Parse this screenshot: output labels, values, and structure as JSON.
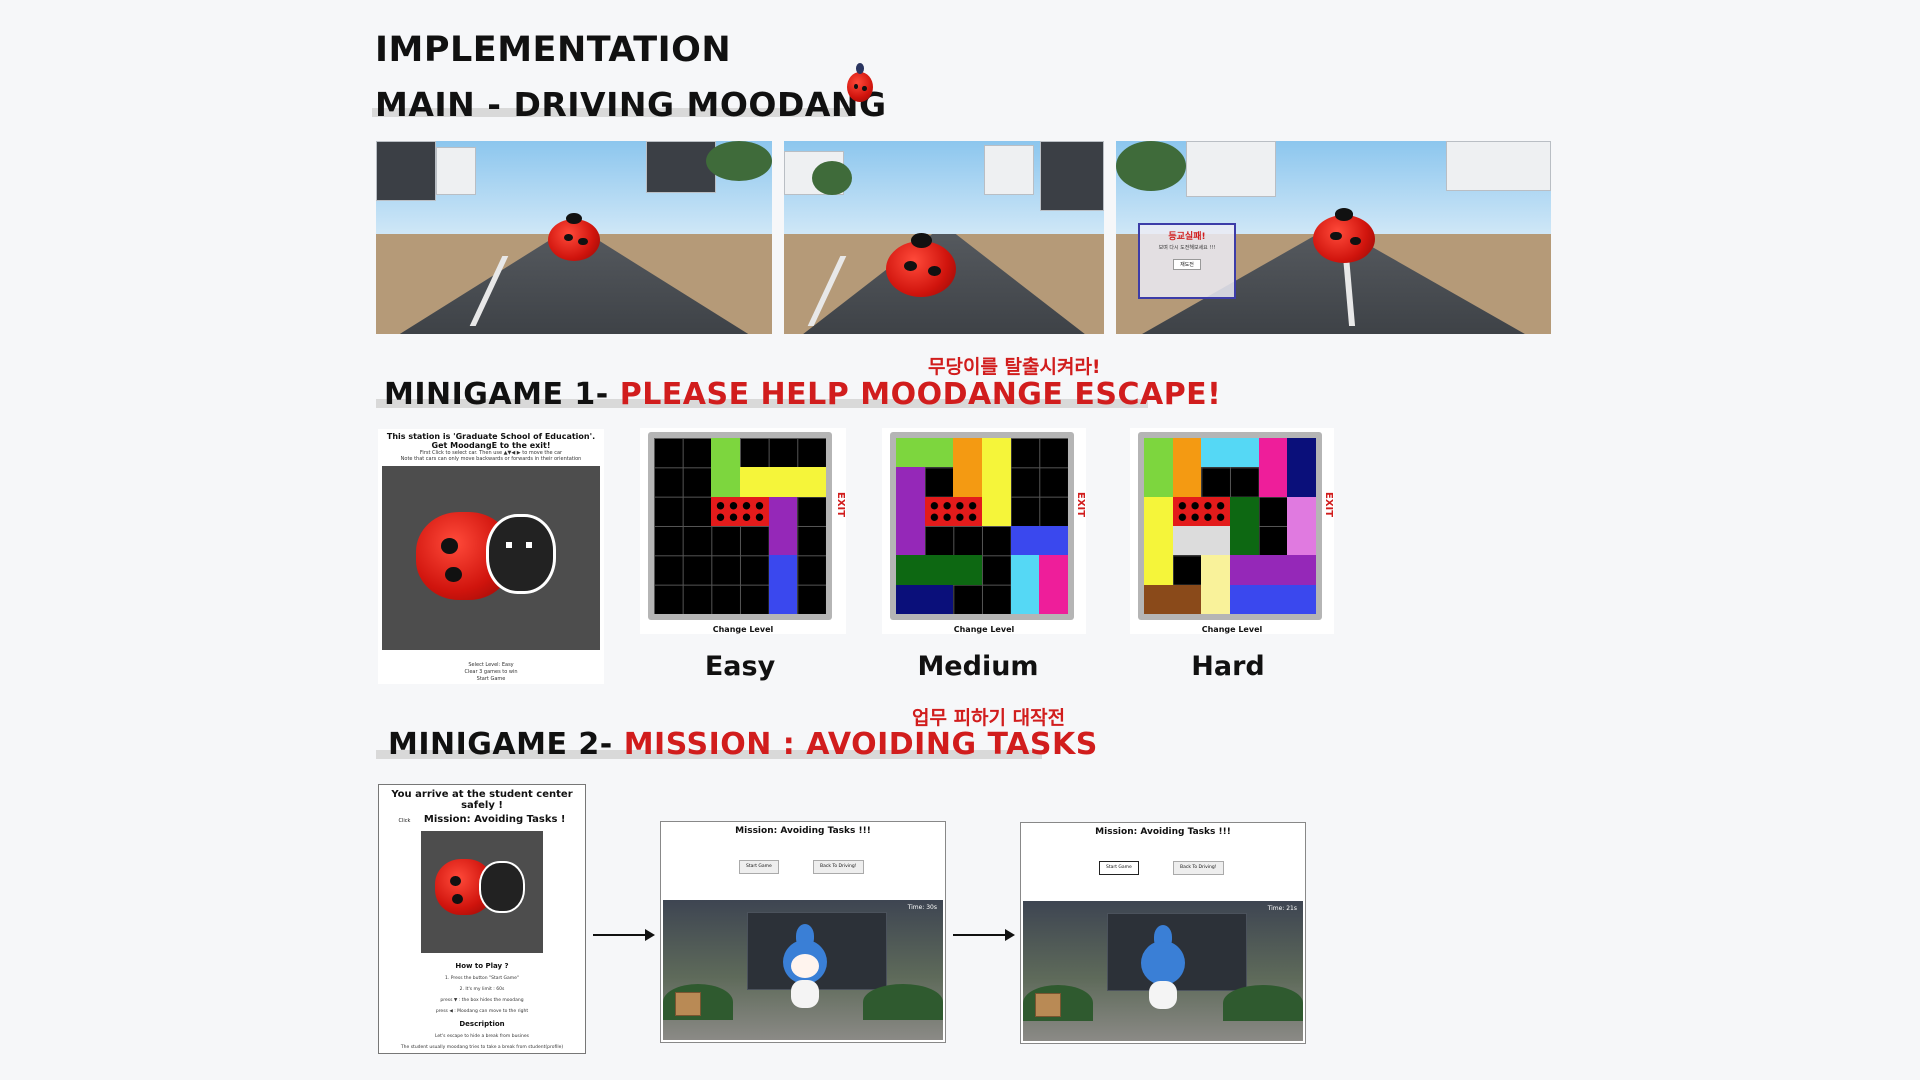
{
  "header": {
    "title": "IMPLEMENTATION",
    "subtitle": "MAIN - DRIVING MOODANG"
  },
  "driving": {
    "popup_title": "등교실패!",
    "popup_text": "보며 다시 도전해보세요 !!!",
    "popup_button": "재도전"
  },
  "minigame1": {
    "korean_caption": "무당이를 탈출시켜라!",
    "title_prefix": "MINIGAME 1-",
    "title_highlight": "PLEASE HELP MOODANGE ESCAPE!",
    "intro": {
      "line1": "This station is 'Graduate School of Education'.",
      "line2": "Get MoodangE to the exit!",
      "line3": "First Click to select car. Then use ▲▼◀ ▶ to move the car",
      "line4": "Note that cars can only move backwards or forwards in their orientation",
      "foot1": "Select Level: Easy",
      "foot2": "Clear 3 games to win",
      "foot3": "Start Game"
    },
    "exit_label": "EXIT",
    "change_level_label": "Change Level",
    "levels": [
      "Easy",
      "Medium",
      "Hard"
    ]
  },
  "minigame2": {
    "korean_caption": "업무 피하기 대작전",
    "title_prefix": "MINIGAME 2-",
    "title_highlight": "MISSION : AVOIDING TASKS",
    "intro": {
      "arrive": "You arrive at the student center safely !",
      "click": "Click",
      "mission": "Mission: Avoiding Tasks !",
      "how": "How to Play ?",
      "step1": "1. Press the button \"Start Game\"",
      "step2": "2. It's my limit : 60s",
      "step3": "press ▼ : the box hides the moodang",
      "step4": "press ◀ : Moodang can move to the right",
      "desc_title": "Description",
      "desc1": "Let's escape to hide a break from busines",
      "desc2": "The student usually moodang tries to take a break from student(profile)"
    },
    "screen1": {
      "title": "Mission: Avoiding Tasks !!!",
      "btn_start": "Start Game",
      "btn_back": "Back To Driving!",
      "timer": "Time: 30s"
    },
    "screen2": {
      "title": "Mission: Avoiding Tasks !!!",
      "btn_start": "Start Game",
      "btn_back": "Back To Driving!",
      "timer": "Time: 21s"
    }
  },
  "colors": {
    "accent_red": "#d11d1d",
    "background": "#f6f7f9"
  }
}
